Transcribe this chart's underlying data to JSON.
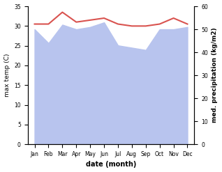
{
  "months": [
    "Jan",
    "Feb",
    "Mar",
    "Apr",
    "May",
    "Jun",
    "Jul",
    "Aug",
    "Sep",
    "Oct",
    "Nov",
    "Dec"
  ],
  "month_positions": [
    0,
    1,
    2,
    3,
    4,
    5,
    6,
    7,
    8,
    9,
    10,
    11
  ],
  "temperature": [
    30.5,
    30.5,
    33.5,
    31.0,
    31.5,
    32.0,
    30.5,
    30.0,
    30.0,
    30.5,
    32.0,
    30.5
  ],
  "precipitation_right": [
    50,
    44,
    52,
    50,
    51,
    53,
    43,
    42,
    41,
    50,
    50,
    51
  ],
  "temp_color": "#d9534f",
  "precip_color": "#b8c4ee",
  "left_ylim": [
    0,
    35
  ],
  "right_ylim": [
    0,
    60
  ],
  "left_ylabel": "max temp (C)",
  "right_ylabel": "med. precipitation (kg/m2)",
  "xlabel": "date (month)",
  "temp_linewidth": 1.5,
  "background_color": "#ffffff",
  "fig_width": 3.18,
  "fig_height": 2.47,
  "dpi": 100
}
